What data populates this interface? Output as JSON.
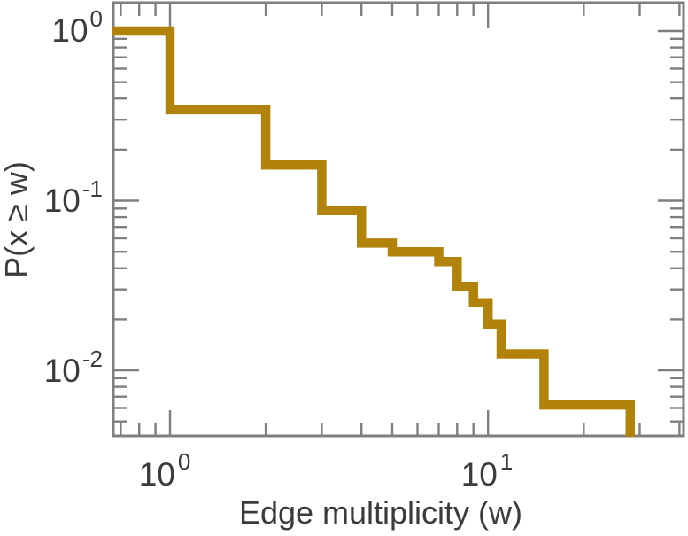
{
  "figure": {
    "background": "#ffffff",
    "axis_color": "#7f7f7f",
    "text_color": "#3b3b3b"
  },
  "chart_data": {
    "type": "line",
    "subtype": "ccdf-staircase-loglog",
    "title": "",
    "xlabel": "Edge multiplicity (w)",
    "ylabel": "P(x ≥ w)",
    "xscale": "log",
    "yscale": "log",
    "xlim": [
      0.6635,
      41.2
    ],
    "ylim": [
      0.00411,
      1.47
    ],
    "grid": false,
    "legend": "none",
    "x_major_ticks": [
      1,
      10
    ],
    "x_minor_ticks": [
      0.7,
      0.8,
      0.9,
      2,
      3,
      4,
      5,
      6,
      7,
      8,
      9,
      20,
      30,
      40
    ],
    "y_major_ticks": [
      1,
      0.1,
      0.01
    ],
    "y_minor_ticks": [
      0.9,
      0.8,
      0.7,
      0.6,
      0.5,
      0.4,
      0.3,
      0.2,
      0.09,
      0.08,
      0.07,
      0.06,
      0.05,
      0.04,
      0.03,
      0.02,
      0.009,
      0.008,
      0.007,
      0.006,
      0.005
    ],
    "x_tick_labels": [
      {
        "value": 1,
        "mantissa": "10",
        "exp": "0"
      },
      {
        "value": 10,
        "mantissa": "10",
        "exp": "1"
      }
    ],
    "y_tick_labels": [
      {
        "value": 1,
        "mantissa": "10",
        "exp": "0"
      },
      {
        "value": 0.1,
        "mantissa": "10",
        "exp": "-1"
      },
      {
        "value": 0.01,
        "mantissa": "10",
        "exp": "-2"
      }
    ],
    "series": [
      {
        "name": "edge-multiplicity-ccdf",
        "color": "#B1830B",
        "linewidth": 10.5,
        "ccdf_points": [
          [
            1,
            1.0
          ],
          [
            2,
            0.34375
          ],
          [
            3,
            0.1625
          ],
          [
            4,
            0.0875
          ],
          [
            5,
            0.05625
          ],
          [
            7,
            0.05
          ],
          [
            8,
            0.04375
          ],
          [
            9,
            0.03125
          ],
          [
            10,
            0.025
          ],
          [
            11,
            0.01875
          ],
          [
            15,
            0.0125
          ],
          [
            28,
            0.00625
          ]
        ],
        "final_drop_at_x": 28,
        "note": "staircase drops at each listed w to the next P; final vertical at w=28 runs down to the bottom axis"
      }
    ]
  }
}
